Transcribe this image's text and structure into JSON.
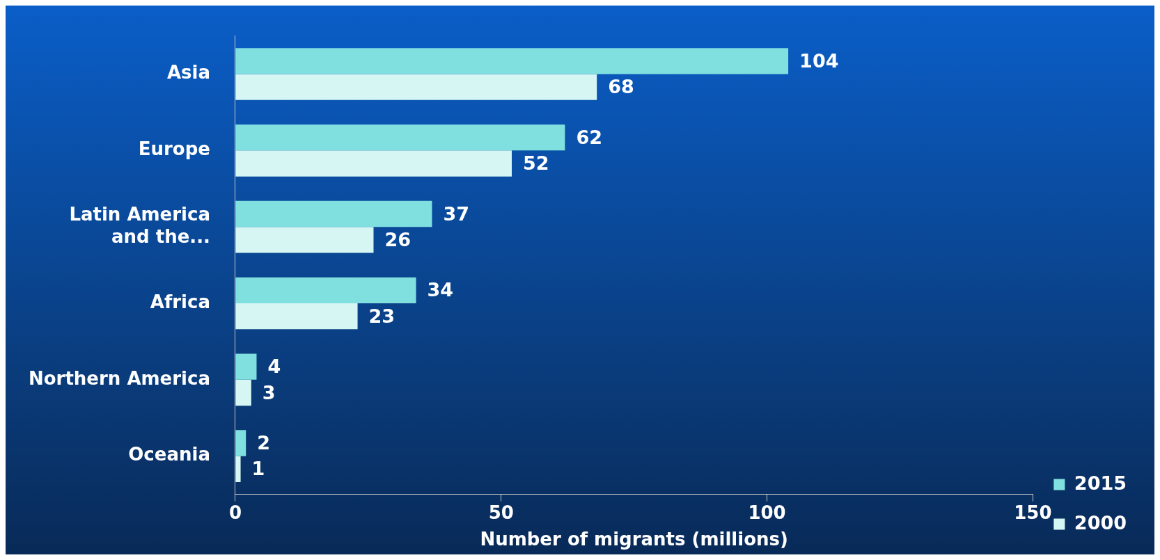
{
  "chart_data": {
    "type": "bar",
    "orientation": "horizontal",
    "xlabel": "Number of migrants (millions)",
    "categories": [
      "Asia",
      "Europe",
      "Latin America and the...",
      "Africa",
      "Northern America",
      "Oceania"
    ],
    "series": [
      {
        "name": "2015",
        "color": "#80e0e0",
        "values": [
          104,
          62,
          37,
          34,
          4,
          2
        ]
      },
      {
        "name": "2000",
        "color": "#d6f6f4",
        "values": [
          68,
          52,
          26,
          23,
          3,
          1
        ]
      }
    ],
    "xlim": [
      0,
      150
    ],
    "xticks": [
      0,
      50,
      100,
      150
    ],
    "data_labels": true,
    "grid": false,
    "legend": "bottom right"
  }
}
